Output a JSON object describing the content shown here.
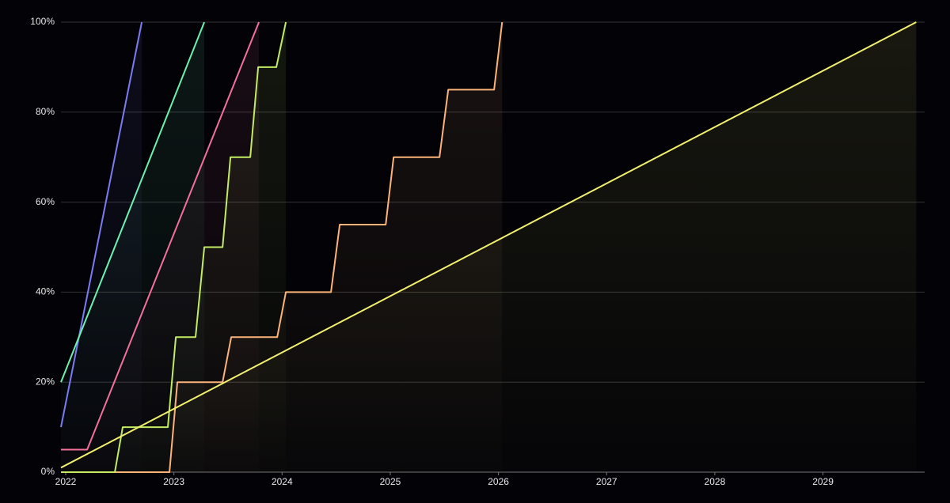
{
  "chart_data": {
    "type": "line",
    "xlim": [
      2021.956,
      2029.94
    ],
    "xticks": [
      2022,
      2023,
      2024,
      2025,
      2026,
      2027,
      2028,
      2029
    ],
    "ylim": [
      0,
      100
    ],
    "yticks": [
      {
        "value": 0,
        "label": "0%"
      },
      {
        "value": 20,
        "label": "20%"
      },
      {
        "value": 40,
        "label": "40%"
      },
      {
        "value": 60,
        "label": "60%"
      },
      {
        "value": 80,
        "label": "80%"
      },
      {
        "value": 100,
        "label": "100%"
      }
    ],
    "grid": true,
    "series": [
      {
        "color": "#7c7cf2",
        "x": [
          2021.956,
          2022.703
        ],
        "values": [
          10,
          100
        ]
      },
      {
        "color": "#6ef0b0",
        "x": [
          2021.956,
          2023.281
        ],
        "values": [
          20,
          100
        ]
      },
      {
        "color": "#f2709a",
        "x": [
          2021.956,
          2022.198,
          2023.786
        ],
        "values": [
          5,
          5,
          100
        ]
      },
      {
        "color": "#fcb37a",
        "x": [
          2021.956,
          2022.959,
          2023.032,
          2023.45,
          2023.53,
          2023.955,
          2024.035,
          2024.452,
          2024.533,
          2024.958,
          2025.031,
          2025.455,
          2025.536,
          2025.96,
          2026.034
        ],
        "values": [
          0,
          0,
          20,
          20,
          30,
          30,
          40,
          40,
          55,
          55,
          70,
          70,
          85,
          85,
          100
        ]
      },
      {
        "color": "#c2ec62",
        "x": [
          2021.956,
          2022.454,
          2022.527,
          2022.944,
          2023.018,
          2023.2,
          2023.281,
          2023.45,
          2023.523,
          2023.706,
          2023.779,
          2023.947,
          2024.035
        ],
        "values": [
          0,
          0,
          10,
          10,
          30,
          30,
          50,
          50,
          70,
          70,
          90,
          90,
          100
        ]
      },
      {
        "color": "#f2f06c",
        "x": [
          2021.956,
          2029.862
        ],
        "values": [
          1,
          100
        ]
      }
    ]
  }
}
